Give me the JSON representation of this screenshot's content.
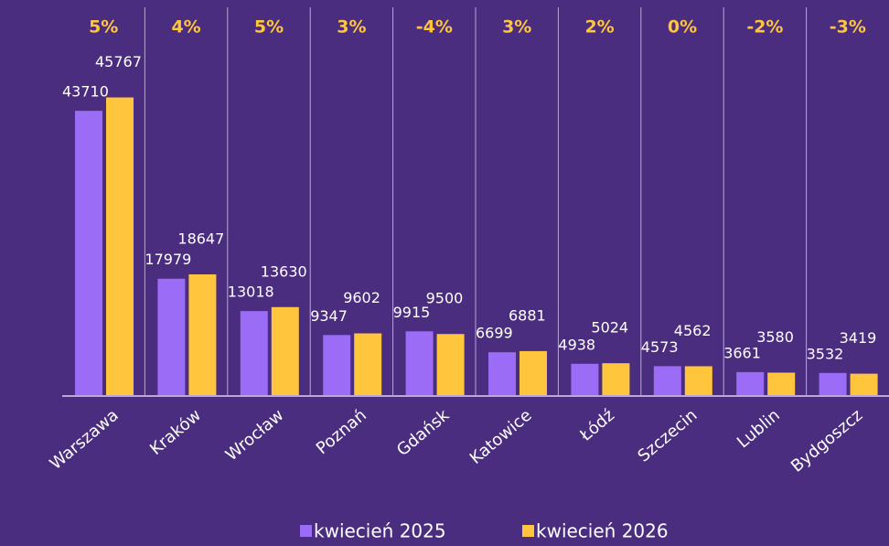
{
  "chart_data": {
    "type": "bar",
    "categories": [
      "Warszawa",
      "Kraków",
      "Wrocław",
      "Poznań",
      "Gdańsk",
      "Katowice",
      "Łódź",
      "Szczecin",
      "Lublin",
      "Bydgoszcz"
    ],
    "series": [
      {
        "name": "kwiecień 2025",
        "color": "#9b6cf5",
        "values": [
          43710,
          17979,
          13018,
          9347,
          9915,
          6699,
          4938,
          4573,
          3661,
          3532
        ]
      },
      {
        "name": "kwiecień 2026",
        "color": "#ffc53d",
        "values": [
          45767,
          18647,
          13630,
          9602,
          9500,
          6881,
          5024,
          4562,
          3580,
          3419
        ]
      }
    ],
    "changes": {
      "values": [
        5,
        4,
        5,
        3,
        -4,
        3,
        2,
        0,
        -2,
        -3
      ],
      "value_labels": [
        "5%",
        "4%",
        "5%",
        "3%",
        "-4%",
        "3%",
        "2%",
        "0%",
        "-2%",
        "-3%"
      ],
      "color": "#ffc53d"
    },
    "ylim": [
      0,
      60000
    ],
    "legend": "bottom"
  }
}
